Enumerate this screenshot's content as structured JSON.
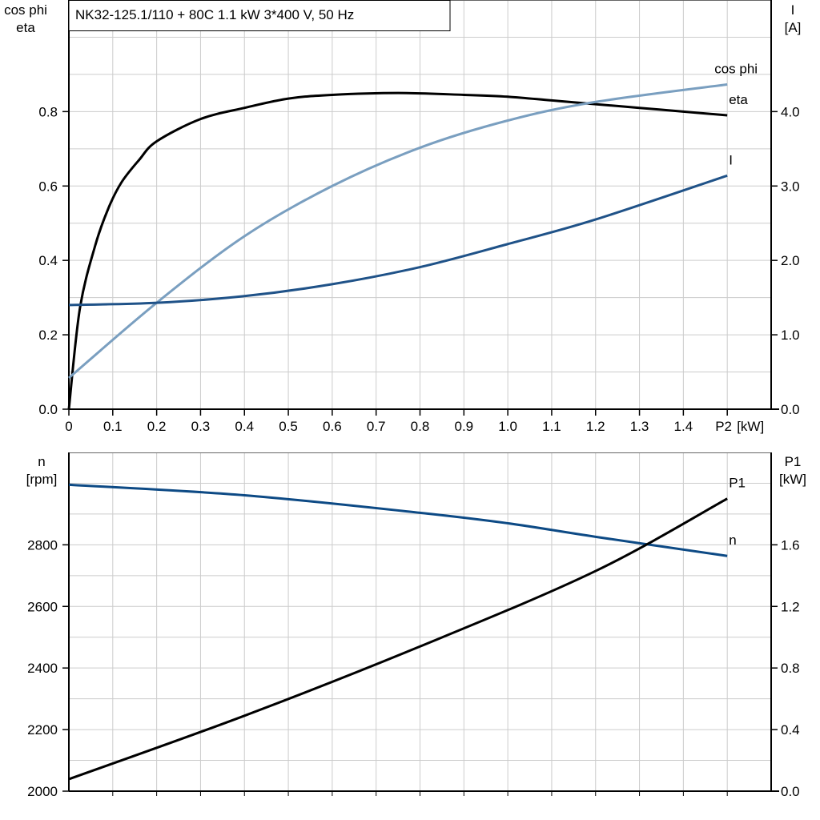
{
  "chart_data": [
    {
      "type": "line",
      "title": "NK32-125.1/110 + 80C   1.1 kW   3*400 V, 50 Hz",
      "xlabel": "P2 [kW]",
      "x_unit": "[kW]",
      "x_end_label": "P2",
      "ylabel_left": [
        "cos phi",
        "eta"
      ],
      "ylabel_right": [
        "I",
        "[A]"
      ],
      "xlim": [
        0,
        1.6
      ],
      "ylim_left": [
        0,
        1.1
      ],
      "ylim_right": [
        0,
        5.5
      ],
      "x_ticks": [
        0,
        0.1,
        0.2,
        0.3,
        0.4,
        0.5,
        0.6,
        0.7,
        0.8,
        0.9,
        1.0,
        1.1,
        1.2,
        1.3,
        1.4
      ],
      "x_tick_labels": [
        "0",
        "0.1",
        "0.2",
        "0.3",
        "0.4",
        "0.5",
        "0.6",
        "0.7",
        "0.8",
        "0.9",
        "1.0",
        "1.1",
        "1.2",
        "1.3",
        "1.4"
      ],
      "y_left_ticks": [
        "0.0",
        "0.2",
        "0.4",
        "0.6",
        "0.8"
      ],
      "y_right_ticks": [
        "0.0",
        "1.0",
        "2.0",
        "3.0",
        "4.0"
      ],
      "grid": true,
      "series": [
        {
          "name": "eta",
          "axis": "left",
          "color": "#000000",
          "x": [
            0,
            0.025,
            0.06,
            0.09,
            0.12,
            0.16,
            0.2,
            0.3,
            0.4,
            0.5,
            0.6,
            0.75,
            0.9,
            1.0,
            1.1,
            1.2,
            1.3,
            1.4,
            1.5
          ],
          "y": [
            0,
            0.27,
            0.44,
            0.54,
            0.61,
            0.67,
            0.72,
            0.78,
            0.81,
            0.835,
            0.845,
            0.85,
            0.845,
            0.84,
            0.83,
            0.82,
            0.81,
            0.8,
            0.79
          ]
        },
        {
          "name": "cos phi",
          "axis": "left",
          "color": "#7a9fc0",
          "x": [
            0,
            0.2,
            0.4,
            0.6,
            0.8,
            1.0,
            1.2,
            1.5
          ],
          "y": [
            0.084,
            0.286,
            0.465,
            0.6,
            0.703,
            0.776,
            0.826,
            0.873
          ]
        },
        {
          "name": "I",
          "axis": "right",
          "color": "#1f5288",
          "x": [
            0,
            0.2,
            0.4,
            0.6,
            0.8,
            1.0,
            1.2,
            1.5
          ],
          "y": [
            1.4,
            1.43,
            1.52,
            1.68,
            1.91,
            2.22,
            2.55,
            3.14
          ]
        }
      ]
    },
    {
      "type": "line",
      "ylabel_left": [
        "n",
        "[rpm]"
      ],
      "ylabel_right": [
        "P1",
        "[kW]"
      ],
      "xlim": [
        0,
        1.6
      ],
      "ylim_left": [
        2000,
        3100
      ],
      "ylim_right": [
        0,
        2.2
      ],
      "y_left_ticks": [
        "2000",
        "2200",
        "2400",
        "2600",
        "2800"
      ],
      "y_right_ticks": [
        "0.0",
        "0.4",
        "0.8",
        "1.2",
        "1.6"
      ],
      "grid": true,
      "series": [
        {
          "name": "n",
          "axis": "left",
          "color": "#0d4a85",
          "x": [
            0,
            0.4,
            0.8,
            1.0,
            1.2,
            1.5
          ],
          "y": [
            2995,
            2961,
            2904,
            2870,
            2826,
            2764
          ]
        },
        {
          "name": "P1",
          "axis": "right",
          "color": "#000000",
          "x": [
            0,
            0.4,
            0.8,
            1.2,
            1.5
          ],
          "y": [
            0.078,
            0.49,
            0.94,
            1.43,
            1.9
          ]
        }
      ]
    }
  ]
}
